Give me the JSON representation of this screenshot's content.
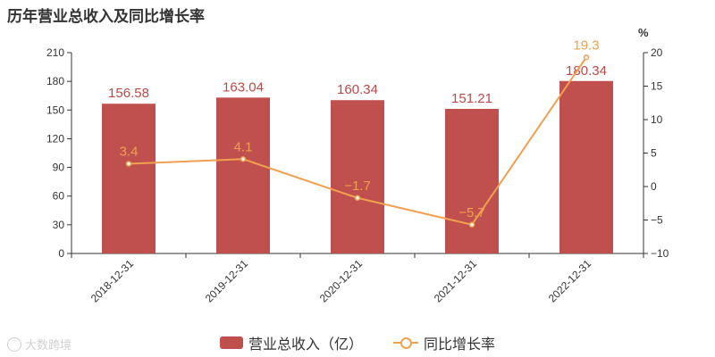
{
  "title": "历年营业总收入及同比增长率",
  "watermark": "大数跨境",
  "legend": {
    "bar_label": "营业总收入（亿）",
    "line_label": "同比增长率"
  },
  "colors": {
    "bar": "#c0504d",
    "bar_label": "#b94a48",
    "line": "#f0a050"
  },
  "chart_data": {
    "type": "bar",
    "categories": [
      "2018-12-31",
      "2019-12-31",
      "2020-12-31",
      "2021-12-31",
      "2022-12-31"
    ],
    "series": [
      {
        "name": "营业总收入（亿）",
        "type": "bar",
        "axis": "left",
        "values": [
          156.58,
          163.04,
          160.34,
          151.21,
          180.34
        ],
        "labels": [
          "156.58",
          "163.04",
          "160.34",
          "151.21",
          "180.34"
        ]
      },
      {
        "name": "同比增长率",
        "type": "line",
        "axis": "right",
        "values": [
          3.4,
          4.1,
          -1.7,
          -5.7,
          19.3
        ],
        "labels": [
          "3.4",
          "4.1",
          "−1.7",
          "−5.7",
          "19.3"
        ]
      }
    ],
    "y_left": {
      "lim": [
        0,
        210
      ],
      "ticks": [
        0,
        30,
        60,
        90,
        120,
        150,
        180,
        210
      ]
    },
    "y_right": {
      "lim": [
        -10,
        20
      ],
      "ticks": [
        -10,
        -5,
        0,
        5,
        10,
        15,
        20
      ],
      "tick_labels": [
        "−10",
        "−5",
        "0",
        "5",
        "10",
        "15",
        "20"
      ],
      "unit": "%"
    },
    "grid": false,
    "legend_position": "bottom"
  }
}
